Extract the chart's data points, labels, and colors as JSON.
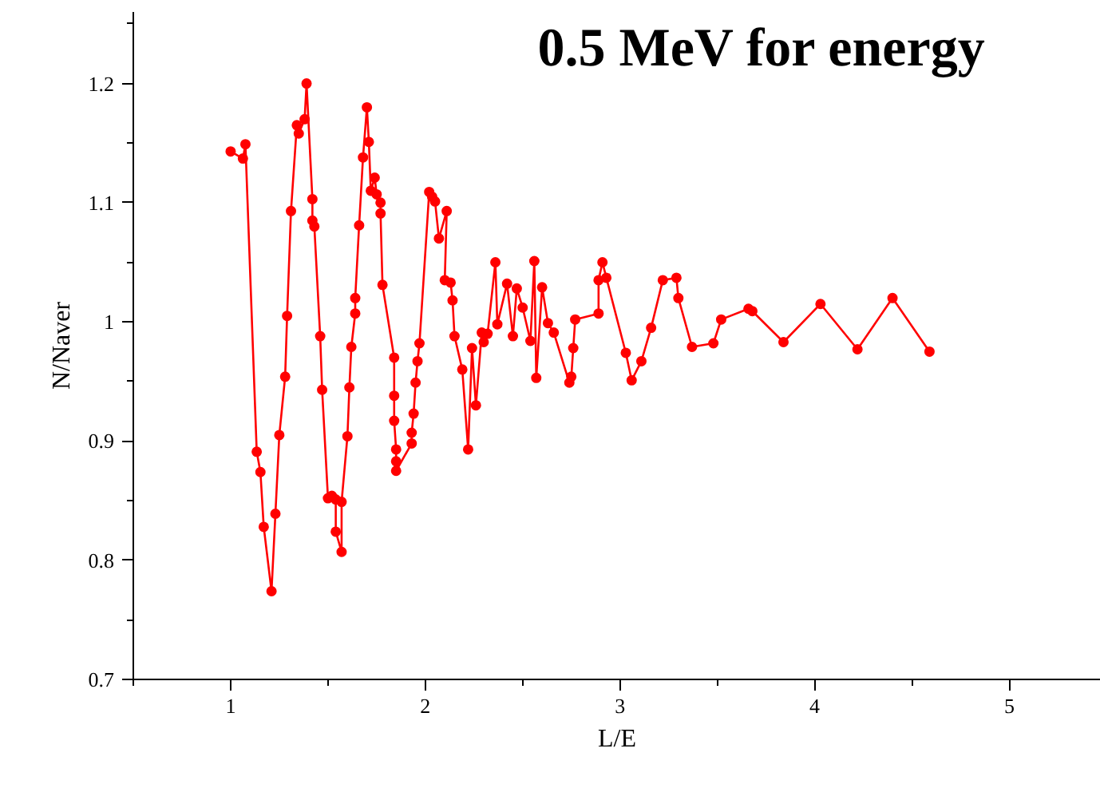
{
  "chart_data": {
    "type": "line",
    "title": "0.5 MeV for energy",
    "xlabel": "L/E",
    "ylabel": "N/Naver",
    "xlim": [
      0.5,
      5.47
    ],
    "xticks": [
      1,
      2,
      3,
      4,
      5
    ],
    "ylim": [
      0.7,
      1.26
    ],
    "yticks": [
      0.7,
      0.8,
      0.9,
      1.0,
      1.1,
      1.2
    ],
    "grid": false,
    "marker": "circle",
    "line_style": "solid",
    "series": [
      {
        "color": "#ff0000",
        "x": [
          1.0,
          1.063,
          1.076,
          1.134,
          1.153,
          1.17,
          1.21,
          1.23,
          1.25,
          1.28,
          1.29,
          1.31,
          1.34,
          1.35,
          1.38,
          1.39,
          1.42,
          1.42,
          1.43,
          1.46,
          1.47,
          1.5,
          1.52,
          1.54,
          1.54,
          1.57,
          1.57,
          1.6,
          1.61,
          1.62,
          1.64,
          1.64,
          1.66,
          1.68,
          1.7,
          1.71,
          1.72,
          1.74,
          1.75,
          1.77,
          1.77,
          1.78,
          1.84,
          1.84,
          1.84,
          1.85,
          1.85,
          1.85,
          1.93,
          1.93,
          1.94,
          1.95,
          1.96,
          1.97,
          2.02,
          2.035,
          2.05,
          2.07,
          2.11,
          2.1,
          2.13,
          2.14,
          2.15,
          2.19,
          2.22,
          2.24,
          2.26,
          2.29,
          2.3,
          2.32,
          2.36,
          2.37,
          2.42,
          2.45,
          2.47,
          2.5,
          2.54,
          2.56,
          2.57,
          2.6,
          2.63,
          2.66,
          2.74,
          2.75,
          2.76,
          2.77,
          2.89,
          2.89,
          2.91,
          2.93,
          3.03,
          3.06,
          3.11,
          3.16,
          3.22,
          3.29,
          3.3,
          3.37,
          3.48,
          3.52,
          3.66,
          3.68,
          3.84,
          4.03,
          4.22,
          4.4,
          4.59
        ],
        "values": [
          1.143,
          1.137,
          1.149,
          0.891,
          0.874,
          0.828,
          0.774,
          0.839,
          0.905,
          0.954,
          1.005,
          1.093,
          1.165,
          1.158,
          1.17,
          1.2,
          1.103,
          1.085,
          1.08,
          0.988,
          0.943,
          0.852,
          0.854,
          0.851,
          0.824,
          0.807,
          0.849,
          0.904,
          0.945,
          0.979,
          1.007,
          1.02,
          1.081,
          1.138,
          1.18,
          1.151,
          1.11,
          1.121,
          1.107,
          1.1,
          1.091,
          1.031,
          0.97,
          0.938,
          0.917,
          0.893,
          0.883,
          0.875,
          0.898,
          0.907,
          0.923,
          0.949,
          0.967,
          0.982,
          1.109,
          1.105,
          1.101,
          1.07,
          1.093,
          1.035,
          1.033,
          1.018,
          0.988,
          0.96,
          0.893,
          0.978,
          0.93,
          0.991,
          0.983,
          0.99,
          1.05,
          0.998,
          1.032,
          0.988,
          1.028,
          1.012,
          0.984,
          1.051,
          0.953,
          1.029,
          0.999,
          0.991,
          0.949,
          0.954,
          0.978,
          1.002,
          1.007,
          1.035,
          1.05,
          1.037,
          0.974,
          0.951,
          0.967,
          0.995,
          1.035,
          1.037,
          1.02,
          0.979,
          0.982,
          1.002,
          1.011,
          1.009,
          0.983,
          1.015,
          0.977,
          1.02,
          0.975
        ]
      }
    ]
  }
}
